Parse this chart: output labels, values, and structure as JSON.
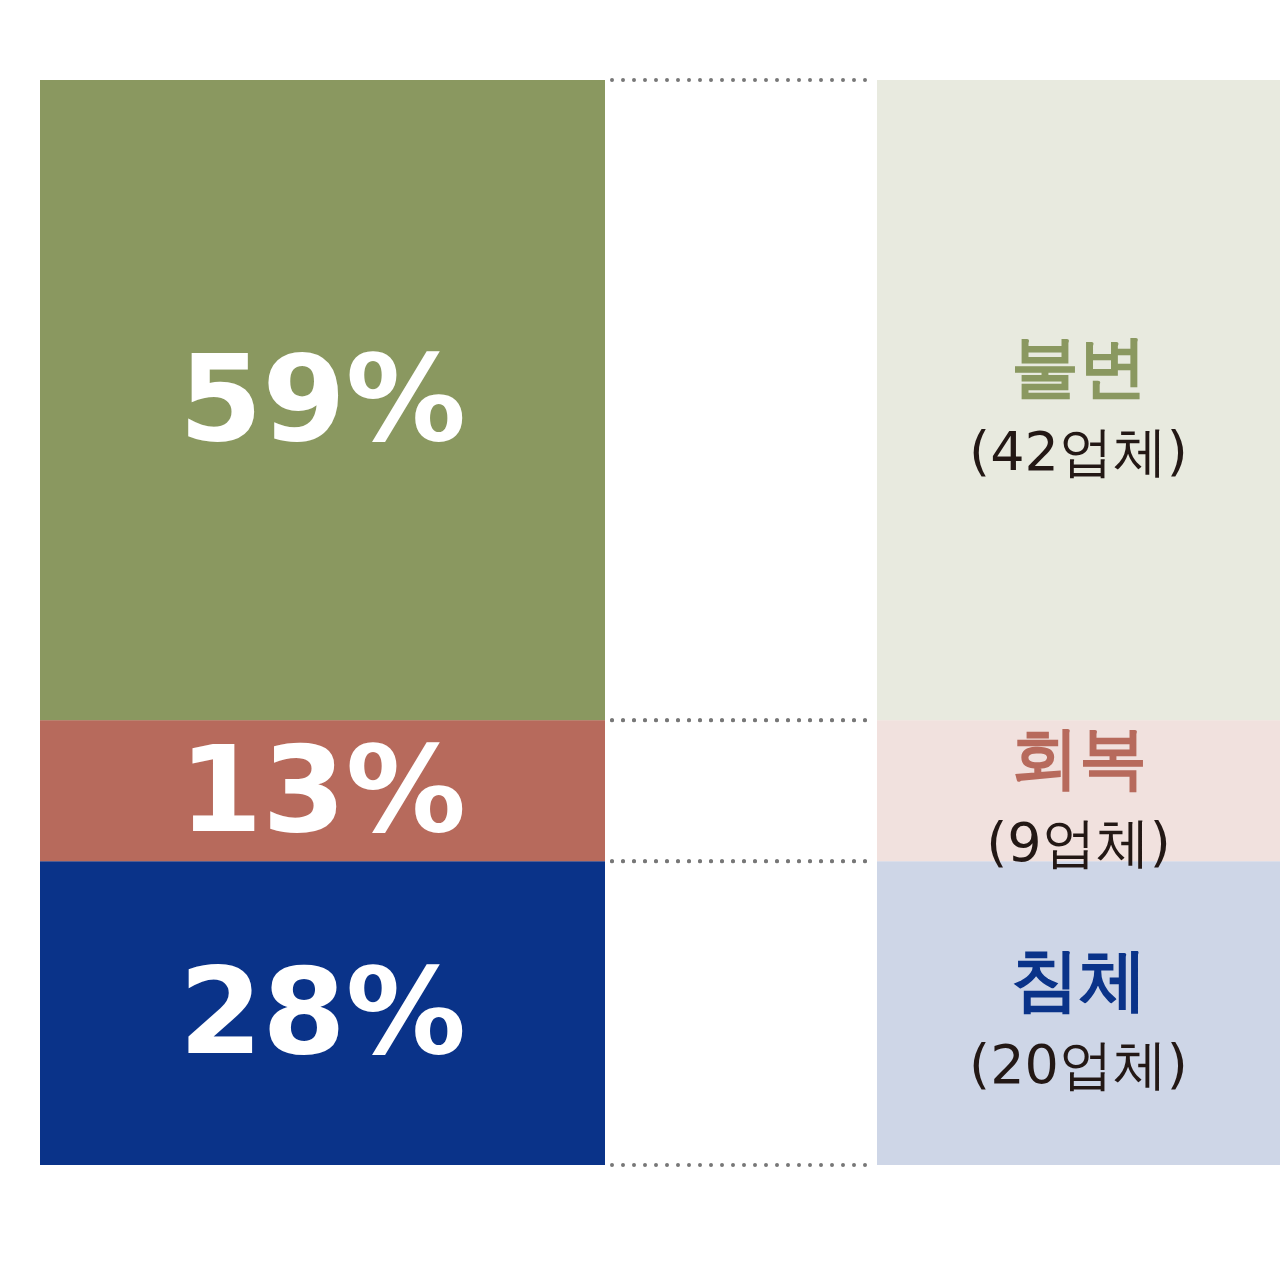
{
  "chart_data": {
    "type": "bar",
    "stacked": true,
    "categories": [
      null
    ],
    "series": [
      {
        "name": "침체",
        "color": "#0a3389",
        "values": [
          28
        ],
        "value_labels": [
          "28%"
        ]
      },
      {
        "name": "회복",
        "color": "#b76a5c",
        "values": [
          13
        ],
        "value_labels": [
          "13%"
        ]
      },
      {
        "name": "불변",
        "color": "#8a9860",
        "values": [
          59
        ],
        "value_labels": [
          "59%"
        ]
      }
    ],
    "annotations": [
      "(20업체)",
      "(9업체)",
      "(42업체)"
    ]
  }
}
